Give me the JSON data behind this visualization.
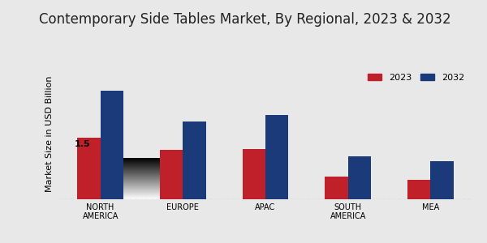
{
  "title": "Contemporary Side Tables Market, By Regional, 2023 & 2032",
  "ylabel": "Market Size in USD Billion",
  "categories": [
    "NORTH\nAMERICA",
    "EUROPE",
    "APAC",
    "SOUTH\nAMERICA",
    "MEA"
  ],
  "values_2023": [
    1.5,
    1.2,
    1.22,
    0.55,
    0.48
  ],
  "values_2032": [
    2.65,
    1.9,
    2.05,
    1.05,
    0.92
  ],
  "color_2023": "#c0202a",
  "color_2032": "#1a3a7a",
  "annotation_text": "1.5",
  "annotation_bar": 0,
  "bg_top": "#f0f0f0",
  "bg_bottom": "#d0d0d0",
  "bar_width": 0.28,
  "legend_labels": [
    "2023",
    "2032"
  ],
  "title_fontsize": 12,
  "label_fontsize": 8,
  "tick_fontsize": 7,
  "bottom_bar_color": "#c0202a",
  "bottom_bar_height": 6
}
